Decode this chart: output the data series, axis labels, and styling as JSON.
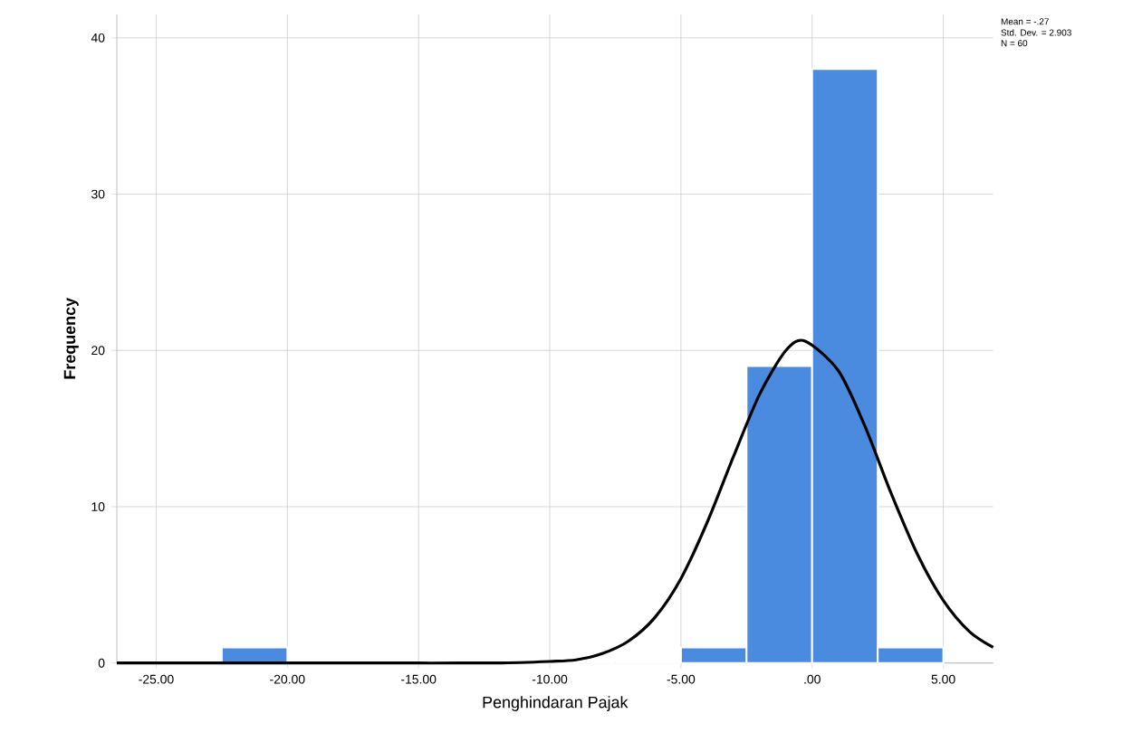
{
  "chart_data": {
    "type": "histogram",
    "xlabel": "Penghindaran Pajak",
    "ylabel": "Frequency",
    "bins": [
      -22.5,
      -20,
      -17.5,
      -15,
      -12.5,
      -10,
      -7.5,
      -5,
      -2.5,
      0,
      2.5,
      5
    ],
    "values": [
      1,
      0,
      0,
      0,
      0,
      0,
      0,
      1,
      19,
      38,
      1
    ],
    "color": "#4a8be0",
    "series": [
      {
        "type": "line",
        "color": "#000000",
        "x": [
          -26.5,
          -20,
          -15,
          -12,
          -10,
          -9,
          -8,
          -7,
          -6,
          -5,
          -4,
          -3,
          -2,
          -1,
          -0.27,
          1,
          2,
          3,
          4,
          5,
          6,
          6.9
        ],
        "values": [
          0,
          0,
          0,
          0,
          0.1,
          0.2,
          0.6,
          1.4,
          2.9,
          5.4,
          9.0,
          13.2,
          17.2,
          20.0,
          20.6,
          18.7,
          15.2,
          10.9,
          7.0,
          4.0,
          2.0,
          1.0
        ]
      }
    ],
    "xlim": [
      -26.5,
      6.9
    ],
    "ylim": [
      0,
      41.5
    ],
    "xticks": [
      {
        "value": -25,
        "label": "-25.00"
      },
      {
        "value": -20,
        "label": "-20.00"
      },
      {
        "value": -15,
        "label": "-15.00"
      },
      {
        "value": -10,
        "label": "-10.00"
      },
      {
        "value": -5,
        "label": "-5.00"
      },
      {
        "value": 0,
        "label": ".00"
      },
      {
        "value": 5,
        "label": "5.00"
      }
    ],
    "yticks": [
      0,
      10,
      20,
      30,
      40
    ],
    "grid": true,
    "annotations": [
      "Mean = -.27",
      "Std. Dev. = 2.903",
      "N = 60"
    ]
  }
}
